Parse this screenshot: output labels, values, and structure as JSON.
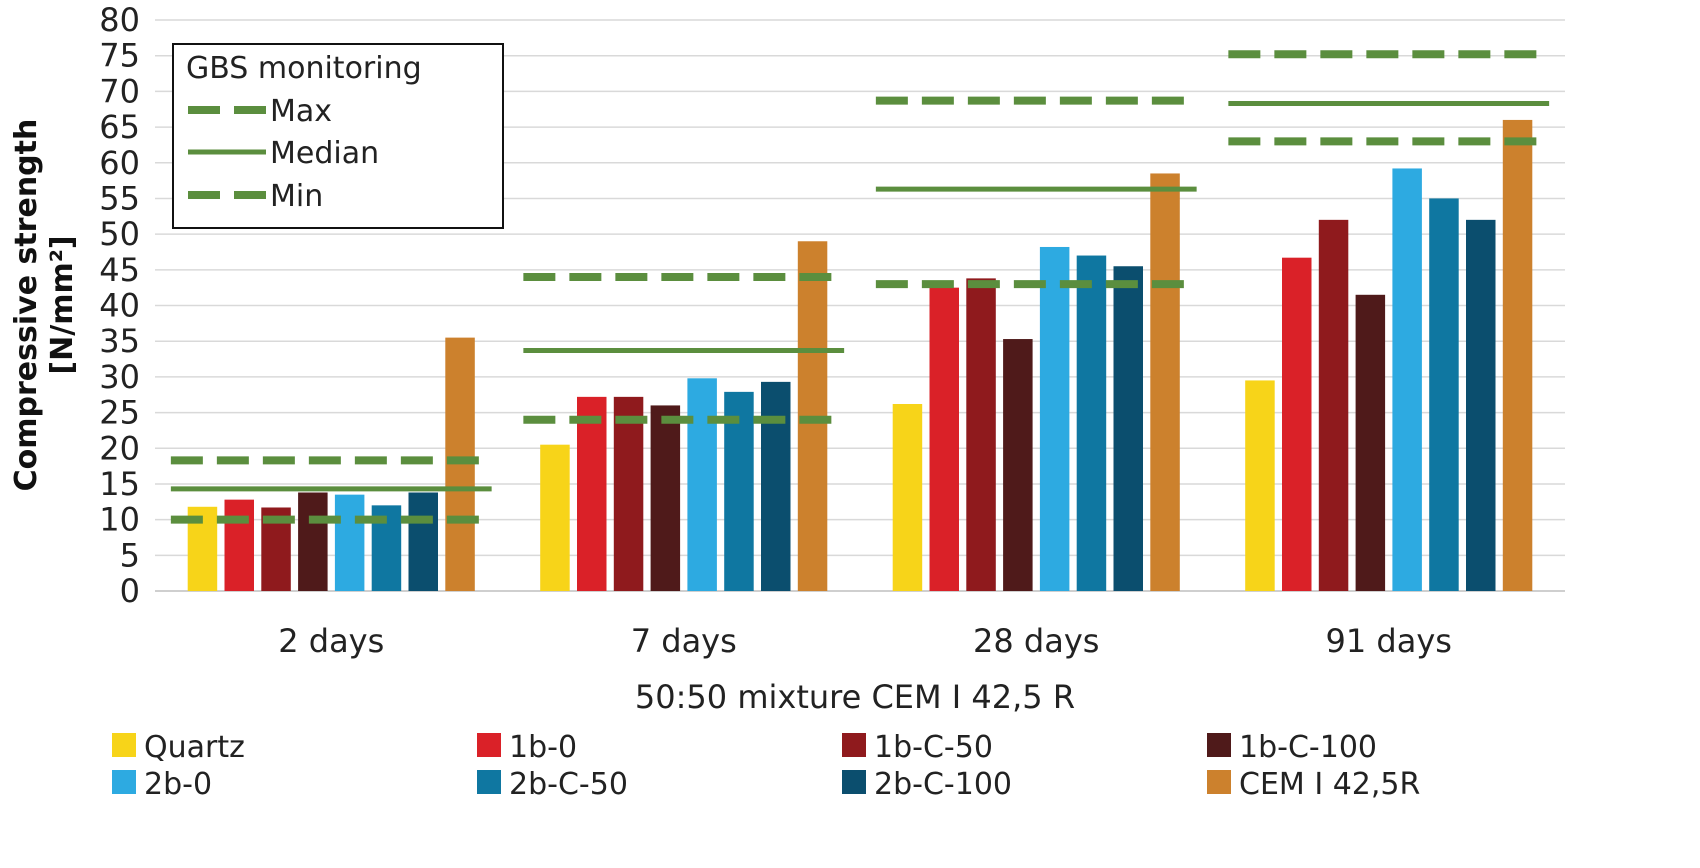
{
  "chart_data": {
    "type": "bar",
    "title": "",
    "xlabel": "50:50 mixture CEM I 42,5 R",
    "ylabel_line1": "Compressive strength",
    "ylabel_line2": "[N/mm²]",
    "ylim": [
      0,
      80
    ],
    "ytick_step": 5,
    "grid": true,
    "categories": [
      "2 days",
      "7 days",
      "28 days",
      "91 days"
    ],
    "series": [
      {
        "name": "Quartz",
        "color": "#F7D419",
        "values": [
          11.8,
          20.5,
          26.2,
          29.5
        ]
      },
      {
        "name": "1b-0",
        "color": "#DA2128",
        "values": [
          12.8,
          27.2,
          42.5,
          46.7
        ]
      },
      {
        "name": "1b-C-50",
        "color": "#8F1A1D",
        "values": [
          11.7,
          27.2,
          43.8,
          52.0
        ]
      },
      {
        "name": "1b-C-100",
        "color": "#4F1A1A",
        "values": [
          13.8,
          26.0,
          35.3,
          41.5
        ]
      },
      {
        "name": "2b-0",
        "color": "#2DAAE1",
        "values": [
          13.5,
          29.8,
          48.2,
          59.2
        ]
      },
      {
        "name": "2b-C-50",
        "color": "#0F77A1",
        "values": [
          12.0,
          27.9,
          47.0,
          55.0
        ]
      },
      {
        "name": "2b-C-100",
        "color": "#0B4E6E",
        "values": [
          13.8,
          29.3,
          45.5,
          52.0
        ]
      },
      {
        "name": "CEM I 42,5R",
        "color": "#CC812D",
        "values": [
          35.5,
          49.0,
          58.5,
          66.0
        ]
      }
    ],
    "monitoring": {
      "title": "GBS monitoring",
      "color": "#5B8E3E",
      "max_label": "Max",
      "median_label": "Median",
      "min_label": "Min",
      "max": [
        18.3,
        44.0,
        68.7,
        75.2
      ],
      "median": [
        14.3,
        33.7,
        56.3,
        68.3
      ],
      "min": [
        10.0,
        24.0,
        43.0,
        63.0
      ]
    },
    "legend_placement": "bottom"
  }
}
